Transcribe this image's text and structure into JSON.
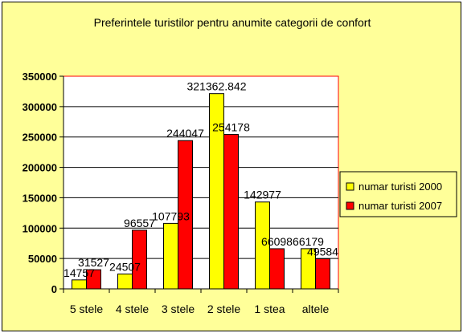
{
  "chart_data": {
    "type": "bar",
    "title": "Preferintele turistilor pentru anumite categorii de confort",
    "xlabel": "",
    "ylabel": "",
    "categories": [
      "5 stele",
      "4 stele",
      "3 stele",
      "2 stele",
      "1 stea",
      "altele"
    ],
    "series": [
      {
        "name": "numar turisti 2000",
        "color": "#FFFF00",
        "values": [
          14757,
          24507,
          107793,
          321362.842,
          142977,
          66179
        ],
        "labels": [
          "14757",
          "24507",
          "107793",
          "321362.842",
          "142977",
          "66179"
        ]
      },
      {
        "name": "numar turisti 2007",
        "color": "#FF0000",
        "values": [
          31527,
          96557,
          244047,
          254178,
          66098,
          49584
        ],
        "labels": [
          "31527",
          "96557",
          "244047",
          "254178",
          "66098",
          "49584"
        ]
      }
    ],
    "ylim": [
      0,
      350000
    ],
    "yticks": [
      "0",
      "50000",
      "100000",
      "150000",
      "200000",
      "250000",
      "300000",
      "350000"
    ],
    "grid": true,
    "legend_position": "right",
    "colors": {
      "chart_background": "#FFFF99",
      "plot_background": "#FFFFFF",
      "plot_border": "#FF0000"
    }
  }
}
